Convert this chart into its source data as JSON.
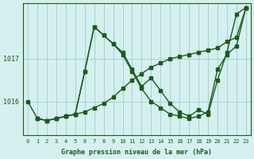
{
  "xlabel": "Graphe pression niveau de la mer (hPa)",
  "bg_color": "#d6f0f0",
  "grid_color": "#aad4d4",
  "line_color": "#1a5c1a",
  "yticks": [
    1016,
    1017
  ],
  "ylim": [
    1015.2,
    1018.3
  ],
  "xlim": [
    -0.5,
    23.5
  ],
  "xticks": [
    0,
    1,
    2,
    3,
    4,
    5,
    6,
    7,
    8,
    9,
    10,
    11,
    12,
    13,
    14,
    15,
    16,
    17,
    18,
    19,
    20,
    21,
    22,
    23
  ],
  "s1_x": [
    0,
    1,
    2,
    3,
    4,
    5,
    6,
    7,
    8,
    9,
    10,
    11,
    12,
    13,
    14,
    15,
    16,
    17,
    18,
    19,
    20,
    21,
    22,
    23
  ],
  "s1_y": [
    1016.0,
    1015.6,
    1015.55,
    1015.6,
    1015.65,
    1015.7,
    1016.7,
    1017.75,
    1017.55,
    1017.35,
    1017.15,
    1016.75,
    1016.35,
    1016.55,
    1016.25,
    1015.95,
    1015.75,
    1015.65,
    1015.8,
    1015.7,
    1016.5,
    1017.15,
    1018.05,
    1018.2
  ],
  "s2_x": [
    1,
    2,
    3,
    4,
    5,
    6,
    7,
    8,
    9,
    10,
    11,
    12,
    13,
    14,
    15,
    16,
    17,
    18,
    19,
    20,
    21,
    22,
    23
  ],
  "s2_y": [
    1015.6,
    1015.55,
    1015.6,
    1015.65,
    1015.7,
    1016.7,
    1017.75,
    1017.55,
    1017.35,
    1017.1,
    1016.7,
    1016.3,
    1016.0,
    1015.85,
    1015.7,
    1015.65,
    1015.6,
    1015.65,
    1015.75,
    1016.75,
    1017.1,
    1017.3,
    1018.2
  ],
  "s3_x": [
    1,
    2,
    3,
    4,
    5,
    6,
    7,
    8,
    9,
    10,
    11,
    12,
    13,
    14,
    15,
    16,
    17,
    18,
    19,
    20,
    21,
    22,
    23
  ],
  "s3_y": [
    1015.6,
    1015.55,
    1015.6,
    1015.65,
    1015.7,
    1015.75,
    1015.85,
    1015.95,
    1016.1,
    1016.3,
    1016.5,
    1016.65,
    1016.8,
    1016.9,
    1017.0,
    1017.05,
    1017.1,
    1017.15,
    1017.2,
    1017.25,
    1017.4,
    1017.5,
    1018.2
  ]
}
